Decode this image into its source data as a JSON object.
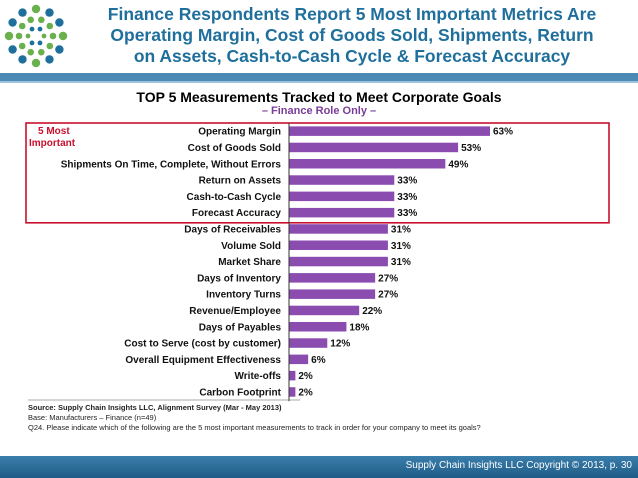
{
  "slide": {
    "title_lines": [
      "Finance Respondents Report 5 Most Important Metrics Are",
      "Operating Margin, Cost of Goods Sold, Shipments, Return",
      "on Assets, Cash-to-Cash Cycle & Forecast Accuracy"
    ],
    "copyright": "Supply Chain Insights LLC Copyright © 2013, p. 30"
  },
  "colors": {
    "title": "#1f6f9c",
    "bar": "#8b4cb0",
    "highlight_box": "#c8102e",
    "highlight_label": "#c8102e",
    "logo_blue": "#1f6f9c",
    "logo_green": "#6ab04c"
  },
  "logo_icon": "dot-circle-logo-icon",
  "highlight": {
    "label_lines": [
      "5 Most",
      "Important"
    ],
    "count": 6
  },
  "chart_data": {
    "type": "bar",
    "orientation": "horizontal",
    "title": "TOP 5 Measurements Tracked to Meet Corporate Goals",
    "subtitle": "– Finance Role Only –",
    "categories": [
      "Operating Margin",
      "Cost of Goods Sold",
      "Shipments On Time, Complete, Without Errors",
      "Return on Assets",
      "Cash-to-Cash Cycle",
      "Forecast Accuracy",
      "Days of Receivables",
      "Volume Sold",
      "Market Share",
      "Days of Inventory",
      "Inventory Turns",
      "Revenue/Employee",
      "Days of Payables",
      "Cost to Serve (cost by customer)",
      "Overall Equipment Effectiveness",
      "Write-offs",
      "Carbon Footprint"
    ],
    "values": [
      63,
      53,
      49,
      33,
      33,
      33,
      31,
      31,
      31,
      27,
      27,
      22,
      18,
      12,
      6,
      2,
      2
    ],
    "data_labels": [
      "63%",
      "53%",
      "49%",
      "33%",
      "33%",
      "33%",
      "31%",
      "31%",
      "31%",
      "27%",
      "27%",
      "22%",
      "18%",
      "12%",
      "6%",
      "2%",
      "2%"
    ],
    "xlim": [
      0,
      70
    ],
    "grid": false,
    "legend": "none"
  },
  "footnotes": {
    "source": "Source:  Supply Chain Insights LLC, Alignment Survey  (Mar - May 2013)",
    "base": "Base:  Manufacturers   – Finance (n=49)",
    "question": "Q24. Please indicate which of the following are the 5 most important measurements to track in order for your company to meet its goals?"
  }
}
